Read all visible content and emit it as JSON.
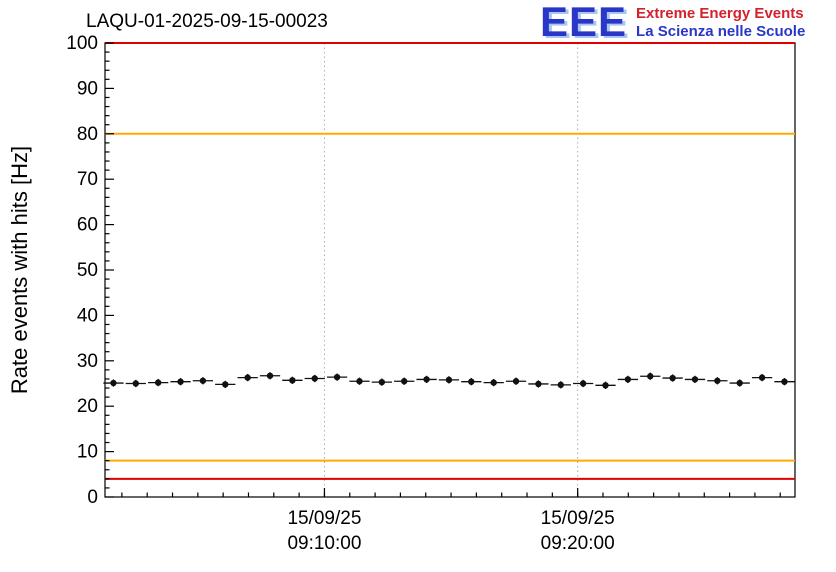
{
  "header": {
    "title": "LAQU-01-2025-09-15-00023",
    "logo": {
      "acronym": "EEE",
      "line1": "Extreme Energy Events",
      "line2": "La Scienza nelle Scuole",
      "acronym_color": "#2936c8",
      "line1_color": "#d5212e",
      "line2_color": "#2936c8"
    }
  },
  "chart_data": {
    "type": "scatter",
    "title": "LAQU-01-2025-09-15-00023",
    "ylabel": "Rate events with hits [Hz]",
    "ylim": [
      0,
      100
    ],
    "y_major_tick_step": 10,
    "y_minor_tick_step": 2,
    "y_tick_labels": [
      "0",
      "10",
      "20",
      "30",
      "40",
      "50",
      "60",
      "70",
      "80",
      "90",
      "100"
    ],
    "xlim_seconds": [
      80,
      1715
    ],
    "x_minor_tick_step_seconds": 60,
    "x_ticks": [
      {
        "seconds": 600,
        "label_line1": "15/09/25",
        "label_line2": "09:10:00"
      },
      {
        "seconds": 1200,
        "label_line1": "15/09/25",
        "label_line2": "09:20:00"
      }
    ],
    "grid": "vertical-dotted-at-major-x-ticks",
    "grid_color": "#aaaaaa",
    "frame_color": "#000000",
    "threshold_lines": [
      {
        "value": 100,
        "color": "#e00000",
        "meaning": "upper-alarm"
      },
      {
        "value": 80,
        "color": "#ffaa00",
        "meaning": "upper-warning"
      },
      {
        "value": 8,
        "color": "#ffaa00",
        "meaning": "lower-warning"
      },
      {
        "value": 4,
        "color": "#e00000",
        "meaning": "lower-alarm"
      }
    ],
    "series": [
      {
        "name": "rate-events-with-hits",
        "marker": "filled-circle",
        "color": "#111111",
        "x_seconds": [
          100,
          153,
          206,
          259,
          312,
          365,
          418,
          471,
          524,
          577,
          630,
          683,
          736,
          789,
          842,
          895,
          948,
          1001,
          1054,
          1107,
          1160,
          1213,
          1266,
          1319,
          1372,
          1425,
          1478,
          1531,
          1584,
          1637,
          1690
        ],
        "y": [
          25.1,
          25.0,
          25.2,
          25.4,
          25.6,
          24.8,
          26.3,
          26.7,
          25.7,
          26.1,
          26.4,
          25.5,
          25.3,
          25.5,
          25.9,
          25.8,
          25.4,
          25.2,
          25.5,
          24.9,
          24.7,
          25.0,
          24.6,
          25.9,
          26.6,
          26.2,
          25.9,
          25.6,
          25.1,
          26.3,
          25.4
        ],
        "x_err_seconds": 24,
        "y_err": 0.8
      }
    ]
  }
}
